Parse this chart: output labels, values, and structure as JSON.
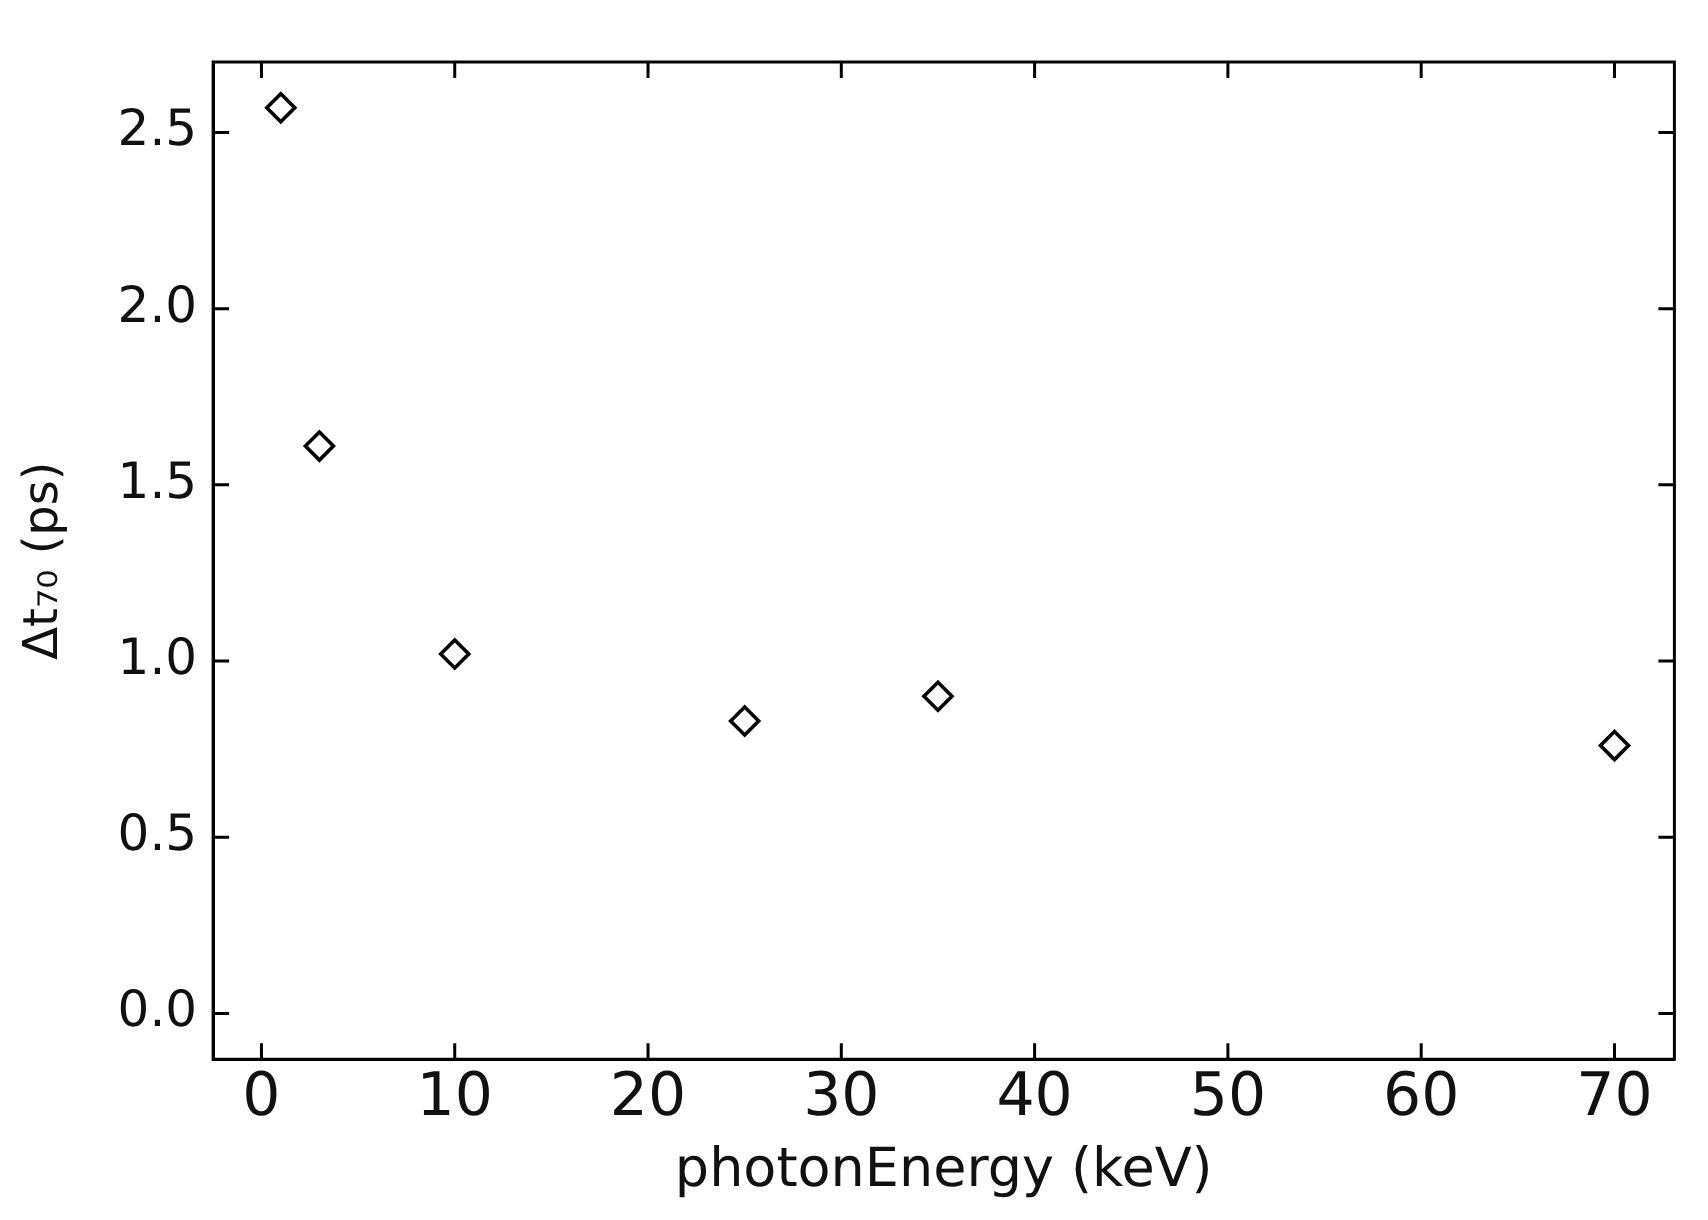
{
  "chart_data": {
    "type": "scatter",
    "xlabel": "photonEnergy (keV)",
    "ylabel": "Δt₇₀ (ps)",
    "x": [
      1,
      3,
      10,
      25,
      35,
      70
    ],
    "series": [
      {
        "color": "#000000",
        "values": [
          2.57,
          1.61,
          1.02,
          0.83,
          0.9,
          0.76
        ]
      }
    ],
    "xlim": [
      -2.5,
      73.1
    ],
    "xticks": [
      0,
      10,
      20,
      30,
      40,
      50,
      60,
      70
    ],
    "ylim": [
      -0.13,
      2.7
    ],
    "yticks": [
      {
        "value": 0,
        "label": "0.0"
      },
      {
        "value": 0.5,
        "label": "0.5"
      },
      {
        "value": 1,
        "label": "1.0"
      },
      {
        "value": 1.5,
        "label": "1.5"
      },
      {
        "value": 2,
        "label": "2.0"
      },
      {
        "value": 2.5,
        "label": "2.5"
      }
    ],
    "marker": "diamond",
    "grid": false,
    "legend": false
  }
}
